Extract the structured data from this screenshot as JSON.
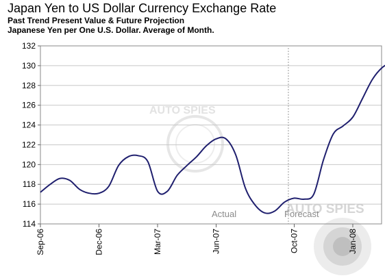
{
  "chart_data": {
    "type": "line",
    "title": "Japan Yen to US Dollar Currency Exchange Rate",
    "subtitle_1": "Past Trend Present Value & Future Projection",
    "subtitle_2": "Japanese Yen per One U.S. Dollar.  Average of Month.",
    "x_tick_labels": [
      "Sep-06",
      "Dec-06",
      "Mar-07",
      "Jun-07",
      "Oct-07",
      "Jan-08"
    ],
    "x_tick_month_index": [
      0,
      3,
      6,
      9,
      13,
      16
    ],
    "ylim": [
      114,
      132
    ],
    "yticks": [
      114,
      116,
      118,
      120,
      122,
      124,
      126,
      128,
      130,
      132
    ],
    "grid": "horizontal",
    "series": [
      {
        "color": "#1f1f6e",
        "points": [
          [
            0,
            117.2
          ],
          [
            0.5,
            118.0
          ],
          [
            1,
            118.6
          ],
          [
            1.5,
            118.4
          ],
          [
            2,
            117.5
          ],
          [
            2.5,
            117.1
          ],
          [
            3,
            117.1
          ],
          [
            3.5,
            117.8
          ],
          [
            4,
            119.9
          ],
          [
            4.5,
            120.8
          ],
          [
            5,
            120.9
          ],
          [
            5.5,
            120.3
          ],
          [
            6,
            117.3
          ],
          [
            6.5,
            117.3
          ],
          [
            7,
            118.9
          ],
          [
            7.5,
            119.9
          ],
          [
            8,
            120.8
          ],
          [
            8.5,
            121.9
          ],
          [
            9,
            122.6
          ],
          [
            9.5,
            122.6
          ],
          [
            10,
            121.0
          ],
          [
            10.5,
            117.6
          ],
          [
            11,
            115.9
          ],
          [
            11.5,
            115.1
          ],
          [
            12,
            115.3
          ],
          [
            12.5,
            116.2
          ],
          [
            13,
            116.6
          ],
          [
            13.5,
            116.5
          ],
          [
            14,
            117.0
          ],
          [
            14.5,
            120.5
          ],
          [
            15,
            123.1
          ],
          [
            15.5,
            123.9
          ],
          [
            16,
            124.8
          ],
          [
            16.5,
            126.7
          ],
          [
            17,
            128.6
          ],
          [
            17.5,
            129.8
          ],
          [
            18,
            130.4
          ],
          [
            18.5,
            131.0
          ]
        ]
      }
    ],
    "forecast_divider_month_index": 12.7,
    "annotations": [
      "Actual",
      "Forecast"
    ],
    "watermark": "AUTO SPIES"
  }
}
